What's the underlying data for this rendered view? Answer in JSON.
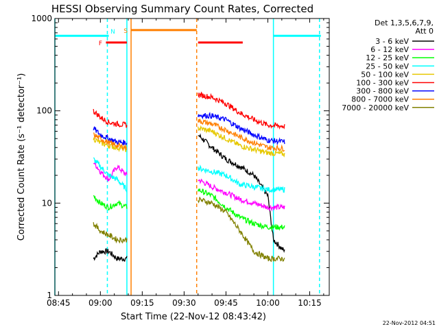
{
  "chart_data": {
    "type": "line",
    "title": "HESSI Observing Summary Count Rates, Corrected",
    "xlabel": "Start Time (22-Nov-12 08:43:42)",
    "ylabel": "Corrected Count Rate (s⁻¹ detector⁻¹)",
    "y_scale": "log",
    "ylim": [
      1,
      1000
    ],
    "xlim": [
      "08:43:42",
      "10:22:00"
    ],
    "x_ticks": [
      "08:45",
      "09:00",
      "09:15",
      "09:30",
      "09:45",
      "10:00",
      "10:15"
    ],
    "y_ticks": [
      "1",
      "10",
      "100",
      "1000"
    ],
    "legend_title": [
      "Det 1,3,5,6,7,9,",
      "Att 0"
    ],
    "legend_position": "right",
    "timestamp": "22-Nov-2012 04:51",
    "series": [
      {
        "name": "3 - 6 keV",
        "color": "#000000",
        "segments": [
          {
            "x": [
              "08:57:30",
              "09:00",
              "09:03",
              "09:06",
              "09:09:30"
            ],
            "y": [
              2.5,
              3,
              3,
              2.5,
              2.5
            ]
          },
          {
            "x": [
              "09:35",
              "09:40",
              "09:45",
              "09:50",
              "09:55",
              "10:00",
              "10:02",
              "10:06"
            ],
            "y": [
              55,
              40,
              30,
              25,
              20,
              12,
              4,
              3
            ]
          }
        ]
      },
      {
        "name": "6 - 12 keV",
        "color": "#ff00ff",
        "segments": [
          {
            "x": [
              "08:57:30",
              "09:00",
              "09:03",
              "09:06",
              "09:09:30"
            ],
            "y": [
              28,
              22,
              18,
              25,
              20
            ]
          },
          {
            "x": [
              "09:35",
              "09:40",
              "09:45",
              "09:50",
              "09:55",
              "10:00",
              "10:06"
            ],
            "y": [
              18,
              15,
              13,
              11,
              10,
              9,
              9
            ]
          }
        ]
      },
      {
        "name": "12 - 25 keV",
        "color": "#00ff00",
        "segments": [
          {
            "x": [
              "08:57:30",
              "09:00",
              "09:03",
              "09:06",
              "09:09:30"
            ],
            "y": [
              12,
              10,
              9,
              10,
              9
            ]
          },
          {
            "x": [
              "09:35",
              "09:40",
              "09:45",
              "09:50",
              "09:55",
              "10:00",
              "10:06"
            ],
            "y": [
              14,
              12,
              9,
              7,
              6,
              5.5,
              5.5
            ]
          }
        ]
      },
      {
        "name": "25 - 50 keV",
        "color": "#00ffff",
        "segments": [
          {
            "x": [
              "08:57:30",
              "09:00",
              "09:03",
              "09:06",
              "09:09:30"
            ],
            "y": [
              30,
              25,
              20,
              18,
              14
            ]
          },
          {
            "x": [
              "09:35",
              "09:40",
              "09:45",
              "09:50",
              "09:55",
              "10:00",
              "10:06"
            ],
            "y": [
              24,
              22,
              20,
              16,
              15,
              14,
              14
            ]
          }
        ]
      },
      {
        "name": "50 - 100 keV",
        "color": "#e6c800",
        "segments": [
          {
            "x": [
              "08:57:30",
              "09:00",
              "09:03",
              "09:06",
              "09:09:30"
            ],
            "y": [
              50,
              45,
              42,
              40,
              38
            ]
          },
          {
            "x": [
              "09:35",
              "09:40",
              "09:45",
              "09:50",
              "09:55",
              "10:00",
              "10:06"
            ],
            "y": [
              65,
              60,
              50,
              42,
              38,
              35,
              34
            ]
          }
        ]
      },
      {
        "name": "100 - 300 keV",
        "color": "#ff0000",
        "segments": [
          {
            "x": [
              "08:57:30",
              "09:00",
              "09:03",
              "09:06",
              "09:09:30"
            ],
            "y": [
              100,
              85,
              75,
              72,
              70
            ]
          },
          {
            "x": [
              "09:35",
              "09:40",
              "09:45",
              "09:50",
              "09:55",
              "10:00",
              "10:06"
            ],
            "y": [
              150,
              140,
              120,
              95,
              80,
              70,
              68
            ]
          }
        ]
      },
      {
        "name": "300 - 800 keV",
        "color": "#0000ff",
        "segments": [
          {
            "x": [
              "08:57:30",
              "09:00",
              "09:03",
              "09:06",
              "09:09:30"
            ],
            "y": [
              65,
              55,
              50,
              46,
              45
            ]
          },
          {
            "x": [
              "09:35",
              "09:40",
              "09:45",
              "09:50",
              "09:55",
              "10:00",
              "10:06"
            ],
            "y": [
              90,
              88,
              80,
              65,
              55,
              48,
              46
            ]
          }
        ]
      },
      {
        "name": "800 - 7000 keV",
        "color": "#ff7f00",
        "segments": [
          {
            "x": [
              "08:57:30",
              "09:00",
              "09:03",
              "09:06",
              "09:09:30"
            ],
            "y": [
              55,
              50,
              45,
              42,
              40
            ]
          },
          {
            "x": [
              "09:35",
              "09:40",
              "09:45",
              "09:50",
              "09:55",
              "10:00",
              "10:06"
            ],
            "y": [
              78,
              72,
              62,
              52,
              45,
              40,
              39
            ]
          }
        ]
      },
      {
        "name": "7000 - 20000 keV",
        "color": "#808000",
        "segments": [
          {
            "x": [
              "08:57:30",
              "09:00",
              "09:03",
              "09:06",
              "09:09:30"
            ],
            "y": [
              6,
              5,
              4.5,
              4,
              4
            ]
          },
          {
            "x": [
              "09:35",
              "09:40",
              "09:45",
              "09:50",
              "09:55",
              "10:00",
              "10:06"
            ],
            "y": [
              11,
              10,
              8,
              5,
              3,
              2.5,
              2.5
            ]
          }
        ]
      }
    ],
    "flag_bars": [
      {
        "label": "F",
        "color": "#ff0000",
        "y": 550,
        "intervals": [
          [
            "09:02:00",
            "09:09:30"
          ],
          [
            "09:35",
            "09:51"
          ]
        ]
      },
      {
        "label": "N",
        "color": "#00ffff",
        "y": 650,
        "intervals": [
          [
            "08:43:42",
            "09:03:00"
          ],
          [
            "10:02",
            "10:19"
          ]
        ]
      },
      {
        "label": "S",
        "color": "#ff7f00",
        "y": 750,
        "intervals": [
          [
            "09:11",
            "09:34:30"
          ]
        ]
      }
    ],
    "vertical_lines": [
      {
        "time": "08:43:42",
        "color": "#00ffff",
        "style": "solid"
      },
      {
        "time": "09:02:30",
        "color": "#00ffff",
        "style": "dashed"
      },
      {
        "time": "09:09:30",
        "color": "#00ffff",
        "style": "solid"
      },
      {
        "time": "09:11:00",
        "color": "#ff7f00",
        "style": "solid"
      },
      {
        "time": "09:34:30",
        "color": "#ff7f00",
        "style": "dashed"
      },
      {
        "time": "10:02:00",
        "color": "#00ffff",
        "style": "solid"
      },
      {
        "time": "10:18:30",
        "color": "#00ffff",
        "style": "dashed"
      }
    ]
  }
}
